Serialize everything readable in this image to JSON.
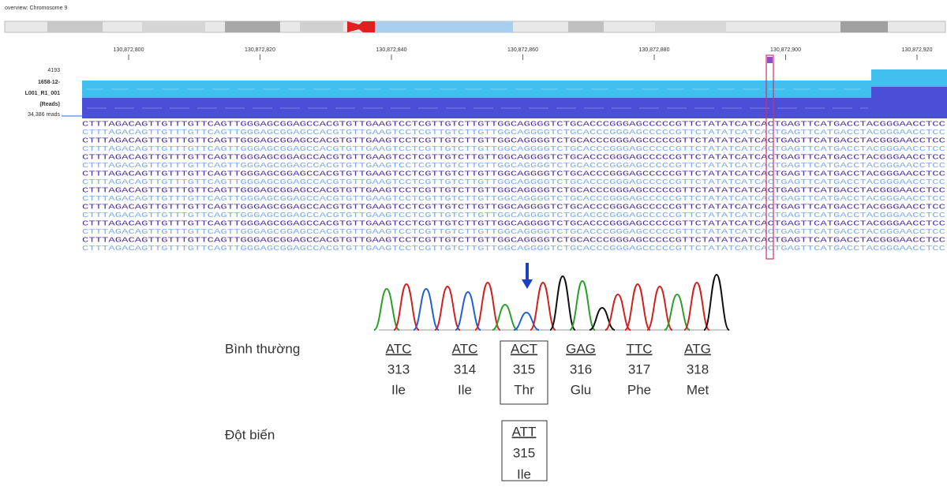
{
  "overview": {
    "title": "overview: Chromosome 9"
  },
  "ruler": {
    "ticks": [
      "130,872,800",
      "130,872,820",
      "130,872,840",
      "130,872,860",
      "130,872,880",
      "130,872,900",
      "130,872,920"
    ]
  },
  "track": {
    "labels": [
      "4193",
      "1658-12-",
      "L001_R1_001",
      "(Reads)",
      "34,386 reads"
    ],
    "sequence": "CTTTAGACAGTTGTTTGTTCAGTTGGGAGCGGAGCCACGTGTTGAAGTCCTCGTTGTCTTGTTGGCAGGGGTCTGCACCCGGGAGCCCCCGTTCTATATCATCACTGAGTTCATGACCTACGGGAACCTCC"
  },
  "codons": {
    "normal": {
      "label": "Bình thường",
      "items": [
        {
          "codon": "ATC",
          "position": 313,
          "amino_acid": "Ile"
        },
        {
          "codon": "ATC",
          "position": 314,
          "amino_acid": "Ile"
        },
        {
          "codon": "ACT",
          "position": 315,
          "amino_acid": "Thr"
        },
        {
          "codon": "GAG",
          "position": 316,
          "amino_acid": "Glu"
        },
        {
          "codon": "TTC",
          "position": 317,
          "amino_acid": "Phe"
        },
        {
          "codon": "ATG",
          "position": 318,
          "amino_acid": "Met"
        }
      ]
    },
    "mutant": {
      "label": "Đột biến",
      "items": [
        {
          "codon": "ATT",
          "position": 315,
          "amino_acid": "Ile"
        }
      ]
    }
  }
}
